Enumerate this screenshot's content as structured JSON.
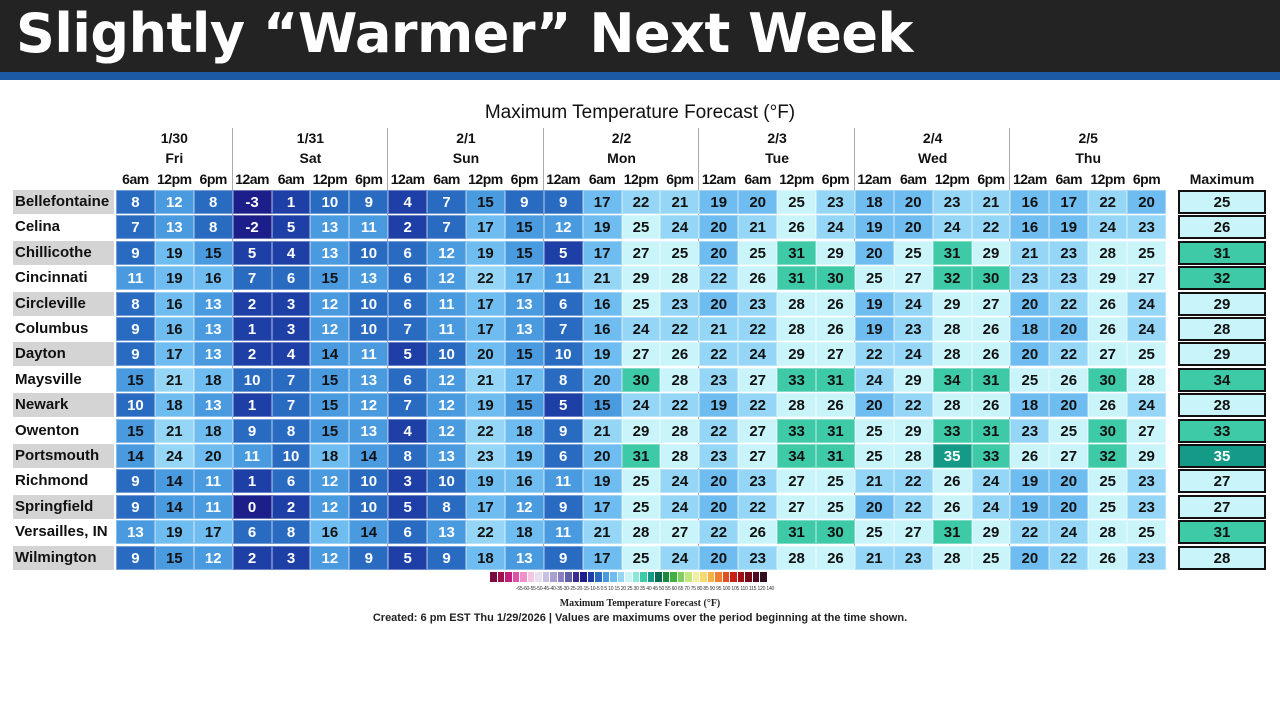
{
  "banner": {
    "title": "Slightly “Warmer” Next Week"
  },
  "chart_data": {
    "type": "table",
    "title": "Maximum Temperature Forecast (°F)",
    "days": [
      {
        "date": "1/30",
        "day": "Fri",
        "times": [
          "6am",
          "12pm",
          "6pm"
        ]
      },
      {
        "date": "1/31",
        "day": "Sat",
        "times": [
          "12am",
          "6am",
          "12pm",
          "6pm"
        ]
      },
      {
        "date": "2/1",
        "day": "Sun",
        "times": [
          "12am",
          "6am",
          "12pm",
          "6pm"
        ]
      },
      {
        "date": "2/2",
        "day": "Mon",
        "times": [
          "12am",
          "6am",
          "12pm",
          "6pm"
        ]
      },
      {
        "date": "2/3",
        "day": "Tue",
        "times": [
          "12am",
          "6am",
          "12pm",
          "6pm"
        ]
      },
      {
        "date": "2/4",
        "day": "Wed",
        "times": [
          "12am",
          "6am",
          "12pm",
          "6pm"
        ]
      },
      {
        "date": "2/5",
        "day": "Thu",
        "times": [
          "12am",
          "6am",
          "12pm",
          "6pm"
        ]
      }
    ],
    "max_header": "Maximum",
    "rows": [
      {
        "city": "Bellefontaine",
        "values": [
          8,
          12,
          8,
          -3,
          1,
          10,
          9,
          4,
          7,
          15,
          9,
          9,
          17,
          22,
          21,
          19,
          20,
          25,
          23,
          18,
          20,
          23,
          21,
          16,
          17,
          22,
          20
        ],
        "max": 25
      },
      {
        "city": "Celina",
        "values": [
          7,
          13,
          8,
          -2,
          5,
          13,
          11,
          2,
          7,
          17,
          15,
          12,
          19,
          25,
          24,
          20,
          21,
          26,
          24,
          19,
          20,
          24,
          22,
          16,
          19,
          24,
          23
        ],
        "max": 26
      },
      {
        "city": "Chillicothe",
        "values": [
          9,
          19,
          15,
          5,
          4,
          13,
          10,
          6,
          12,
          19,
          15,
          5,
          17,
          27,
          25,
          20,
          25,
          31,
          29,
          20,
          25,
          31,
          29,
          21,
          23,
          28,
          25
        ],
        "max": 31
      },
      {
        "city": "Cincinnati",
        "values": [
          11,
          19,
          16,
          7,
          6,
          15,
          13,
          6,
          12,
          22,
          17,
          11,
          21,
          29,
          28,
          22,
          26,
          31,
          30,
          25,
          27,
          32,
          30,
          23,
          23,
          29,
          27
        ],
        "max": 32
      },
      {
        "city": "Circleville",
        "values": [
          8,
          16,
          13,
          2,
          3,
          12,
          10,
          6,
          11,
          17,
          13,
          6,
          16,
          25,
          23,
          20,
          23,
          28,
          26,
          19,
          24,
          29,
          27,
          20,
          22,
          26,
          24
        ],
        "max": 29
      },
      {
        "city": "Columbus",
        "values": [
          9,
          16,
          13,
          1,
          3,
          12,
          10,
          7,
          11,
          17,
          13,
          7,
          16,
          24,
          22,
          21,
          22,
          28,
          26,
          19,
          23,
          28,
          26,
          18,
          20,
          26,
          24
        ],
        "max": 28
      },
      {
        "city": "Dayton",
        "values": [
          9,
          17,
          13,
          2,
          4,
          14,
          11,
          5,
          10,
          20,
          15,
          10,
          19,
          27,
          26,
          22,
          24,
          29,
          27,
          22,
          24,
          28,
          26,
          20,
          22,
          27,
          25
        ],
        "max": 29
      },
      {
        "city": "Maysville",
        "values": [
          15,
          21,
          18,
          10,
          7,
          15,
          13,
          6,
          12,
          21,
          17,
          8,
          20,
          30,
          28,
          23,
          27,
          33,
          31,
          24,
          29,
          34,
          31,
          25,
          26,
          30,
          28
        ],
        "max": 34
      },
      {
        "city": "Newark",
        "values": [
          10,
          18,
          13,
          1,
          7,
          15,
          12,
          7,
          12,
          19,
          15,
          5,
          15,
          24,
          22,
          19,
          22,
          28,
          26,
          20,
          22,
          28,
          26,
          18,
          20,
          26,
          24
        ],
        "max": 28
      },
      {
        "city": "Owenton",
        "values": [
          15,
          21,
          18,
          9,
          8,
          15,
          13,
          4,
          12,
          22,
          18,
          9,
          21,
          29,
          28,
          22,
          27,
          33,
          31,
          25,
          29,
          33,
          31,
          23,
          25,
          30,
          27
        ],
        "max": 33
      },
      {
        "city": "Portsmouth",
        "values": [
          14,
          24,
          20,
          11,
          10,
          18,
          14,
          8,
          13,
          23,
          19,
          6,
          20,
          31,
          28,
          23,
          27,
          34,
          31,
          25,
          28,
          35,
          33,
          26,
          27,
          32,
          29
        ],
        "max": 35
      },
      {
        "city": "Richmond",
        "values": [
          9,
          14,
          11,
          1,
          6,
          12,
          10,
          3,
          10,
          19,
          16,
          11,
          19,
          25,
          24,
          20,
          23,
          27,
          25,
          21,
          22,
          26,
          24,
          19,
          20,
          25,
          23
        ],
        "max": 27
      },
      {
        "city": "Springfield",
        "values": [
          9,
          14,
          11,
          0,
          2,
          12,
          10,
          5,
          8,
          17,
          12,
          9,
          17,
          25,
          24,
          20,
          22,
          27,
          25,
          20,
          22,
          26,
          24,
          19,
          20,
          25,
          23
        ],
        "max": 27
      },
      {
        "city": "Versailles, IN",
        "values": [
          13,
          19,
          17,
          6,
          8,
          16,
          14,
          6,
          13,
          22,
          18,
          11,
          21,
          28,
          27,
          22,
          26,
          31,
          30,
          25,
          27,
          31,
          29,
          22,
          24,
          28,
          25
        ],
        "max": 31
      },
      {
        "city": "Wilmington",
        "values": [
          9,
          15,
          12,
          2,
          3,
          12,
          9,
          5,
          9,
          18,
          13,
          9,
          17,
          25,
          24,
          20,
          23,
          28,
          26,
          21,
          23,
          28,
          25,
          20,
          22,
          26,
          23
        ],
        "max": 28
      }
    ],
    "colors": {
      "le0": "#1c1f8a",
      "1to5": "#1e3fa6",
      "6to10": "#2a6bc2",
      "11to15": "#4a9ae0",
      "16to20": "#6ebcf0",
      "21to24": "#95d6f6",
      "25to29": "#c9f5fa",
      "30to34": "#3ec9a7",
      "35up": "#149a86"
    }
  },
  "legend": {
    "ticks": "-65-60-55-50-45-40-35-30-25-20-15-10-5 0 5 10 15 20 25 30 35 40 45 50 55 60 65 70 75 80 85 90 95 100 105 110 115 120 140",
    "title": "Maximum Temperature Forecast (°F)",
    "colors": [
      "#7a0a3c",
      "#a0104e",
      "#c2207a",
      "#e050a8",
      "#f090c8",
      "#f4c8e4",
      "#e8e0f0",
      "#c8c0e0",
      "#a8a0d0",
      "#8880c0",
      "#6060a8",
      "#3c2c90",
      "#1c1f8a",
      "#1e3fa6",
      "#2a6bc2",
      "#4a9ae0",
      "#6ebcf0",
      "#95d6f6",
      "#c9f5fa",
      "#8ae8d8",
      "#3ec9a7",
      "#149a86",
      "#0a6a50",
      "#1a8a40",
      "#40b040",
      "#80d060",
      "#c0e880",
      "#f0f0a0",
      "#f8d870",
      "#f8b048",
      "#f08030",
      "#e05020",
      "#c82018",
      "#a01010",
      "#780818",
      "#500a20",
      "#301020"
    ]
  },
  "footnote": "Created: 6 pm EST Thu 1/29/2026  |  Values are maximums over the period beginning at the time shown."
}
